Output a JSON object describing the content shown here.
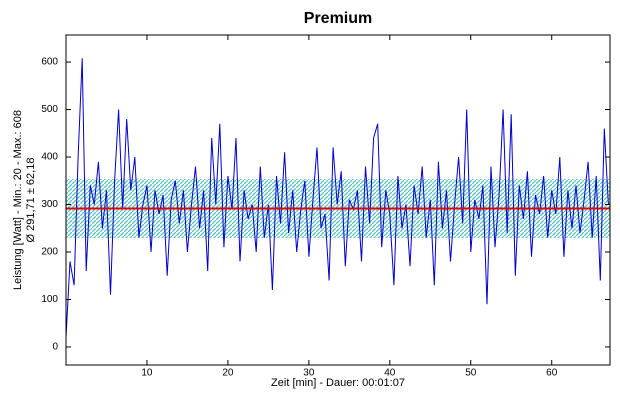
{
  "chart_data": {
    "type": "line",
    "title": "Premium",
    "xlabel": "Zeit [min] - Dauer: 00:01:07",
    "ylabel": [
      "Leistung [Watt] - Min.: 20 - Max.: 608",
      "Ø 291,71 ± 62,18"
    ],
    "mean": 291.71,
    "std": 62.18,
    "mean_color": "#e00000",
    "band_color": "#40b8b8",
    "xlim": [
      0,
      67.2
    ],
    "ylim": [
      -38,
      657
    ],
    "xticks": [
      10,
      20,
      30,
      40,
      50,
      60
    ],
    "yticks": [
      0,
      100,
      200,
      300,
      400,
      500,
      600
    ],
    "series": [
      {
        "name": "Leistung",
        "color": "#0000d0",
        "x": [
          0,
          0.5,
          1,
          1.5,
          2,
          2.5,
          3,
          3.5,
          4,
          4.5,
          5,
          5.5,
          6,
          6.5,
          7,
          7.5,
          8,
          8.5,
          9,
          9.5,
          10,
          10.5,
          11,
          11.5,
          12,
          12.5,
          13,
          13.5,
          14,
          14.5,
          15,
          15.5,
          16,
          16.5,
          17,
          17.5,
          18,
          18.5,
          19,
          19.5,
          20,
          20.5,
          21,
          21.5,
          22,
          22.5,
          23,
          23.5,
          24,
          24.5,
          25,
          25.5,
          26,
          26.5,
          27,
          27.5,
          28,
          28.5,
          29,
          29.5,
          30,
          30.5,
          31,
          31.5,
          32,
          32.5,
          33,
          33.5,
          34,
          34.5,
          35,
          35.5,
          36,
          36.5,
          37,
          37.5,
          38,
          38.5,
          39,
          39.5,
          40,
          40.5,
          41,
          41.5,
          42,
          42.5,
          43,
          43.5,
          44,
          44.5,
          45,
          45.5,
          46,
          46.5,
          47,
          47.5,
          48,
          48.5,
          49,
          49.5,
          50,
          50.5,
          51,
          51.5,
          52,
          52.5,
          53,
          53.5,
          54,
          54.5,
          55,
          55.5,
          56,
          56.5,
          57,
          57.5,
          58,
          58.5,
          59,
          59.5,
          60,
          60.5,
          61,
          61.5,
          62,
          62.5,
          63,
          63.5,
          64,
          64.5,
          65,
          65.5,
          66,
          66.5,
          67
        ],
        "values": [
          20,
          180,
          130,
          400,
          608,
          160,
          340,
          300,
          390,
          250,
          330,
          110,
          350,
          500,
          290,
          480,
          330,
          400,
          230,
          300,
          340,
          200,
          330,
          280,
          320,
          150,
          310,
          350,
          260,
          330,
          200,
          300,
          380,
          250,
          330,
          160,
          440,
          300,
          470,
          210,
          360,
          290,
          440,
          180,
          330,
          270,
          300,
          200,
          380,
          230,
          300,
          120,
          360,
          260,
          410,
          240,
          330,
          200,
          290,
          350,
          190,
          310,
          420,
          250,
          280,
          140,
          420,
          300,
          370,
          170,
          310,
          290,
          330,
          180,
          380,
          260,
          440,
          470,
          210,
          330,
          280,
          130,
          360,
          250,
          300,
          170,
          340,
          280,
          380,
          230,
          310,
          130,
          390,
          250,
          330,
          180,
          300,
          400,
          260,
          500,
          200,
          310,
          270,
          340,
          90,
          380,
          210,
          320,
          500,
          240,
          490,
          150,
          340,
          270,
          370,
          190,
          320,
          280,
          360,
          230,
          330,
          280,
          400,
          190,
          330,
          250,
          340,
          240,
          310,
          390,
          230,
          360,
          140,
          460,
          300
        ]
      }
    ]
  }
}
